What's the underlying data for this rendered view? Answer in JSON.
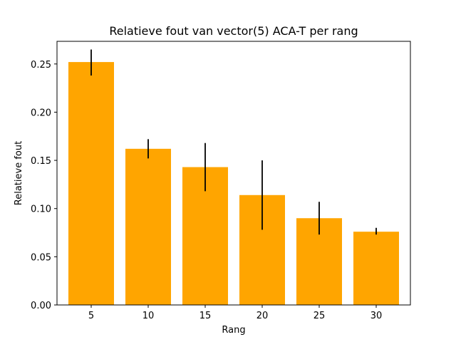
{
  "chart_data": {
    "type": "bar",
    "title": "Relatieve fout van vector(5) ACA-T per rang",
    "xlabel": "Rang",
    "ylabel": "Relatieve fout",
    "categories": [
      "5",
      "10",
      "15",
      "20",
      "25",
      "30"
    ],
    "x": [
      5,
      10,
      15,
      20,
      25,
      30
    ],
    "values": [
      0.252,
      0.162,
      0.143,
      0.114,
      0.09,
      0.076
    ],
    "error_bars": {
      "lower": [
        0.238,
        0.152,
        0.118,
        0.078,
        0.073,
        0.073
      ],
      "upper": [
        0.265,
        0.172,
        0.168,
        0.15,
        0.107,
        0.08
      ]
    },
    "xlim": [
      2,
      33
    ],
    "ylim": [
      0,
      0.2735
    ],
    "yticks": [
      0.0,
      0.05,
      0.1,
      0.15,
      0.2,
      0.25
    ],
    "ytick_labels": [
      "0.00",
      "0.05",
      "0.10",
      "0.15",
      "0.20",
      "0.25"
    ],
    "bar_color": "#ffa500",
    "error_color": "#000000",
    "grid": false,
    "legend": "none"
  }
}
